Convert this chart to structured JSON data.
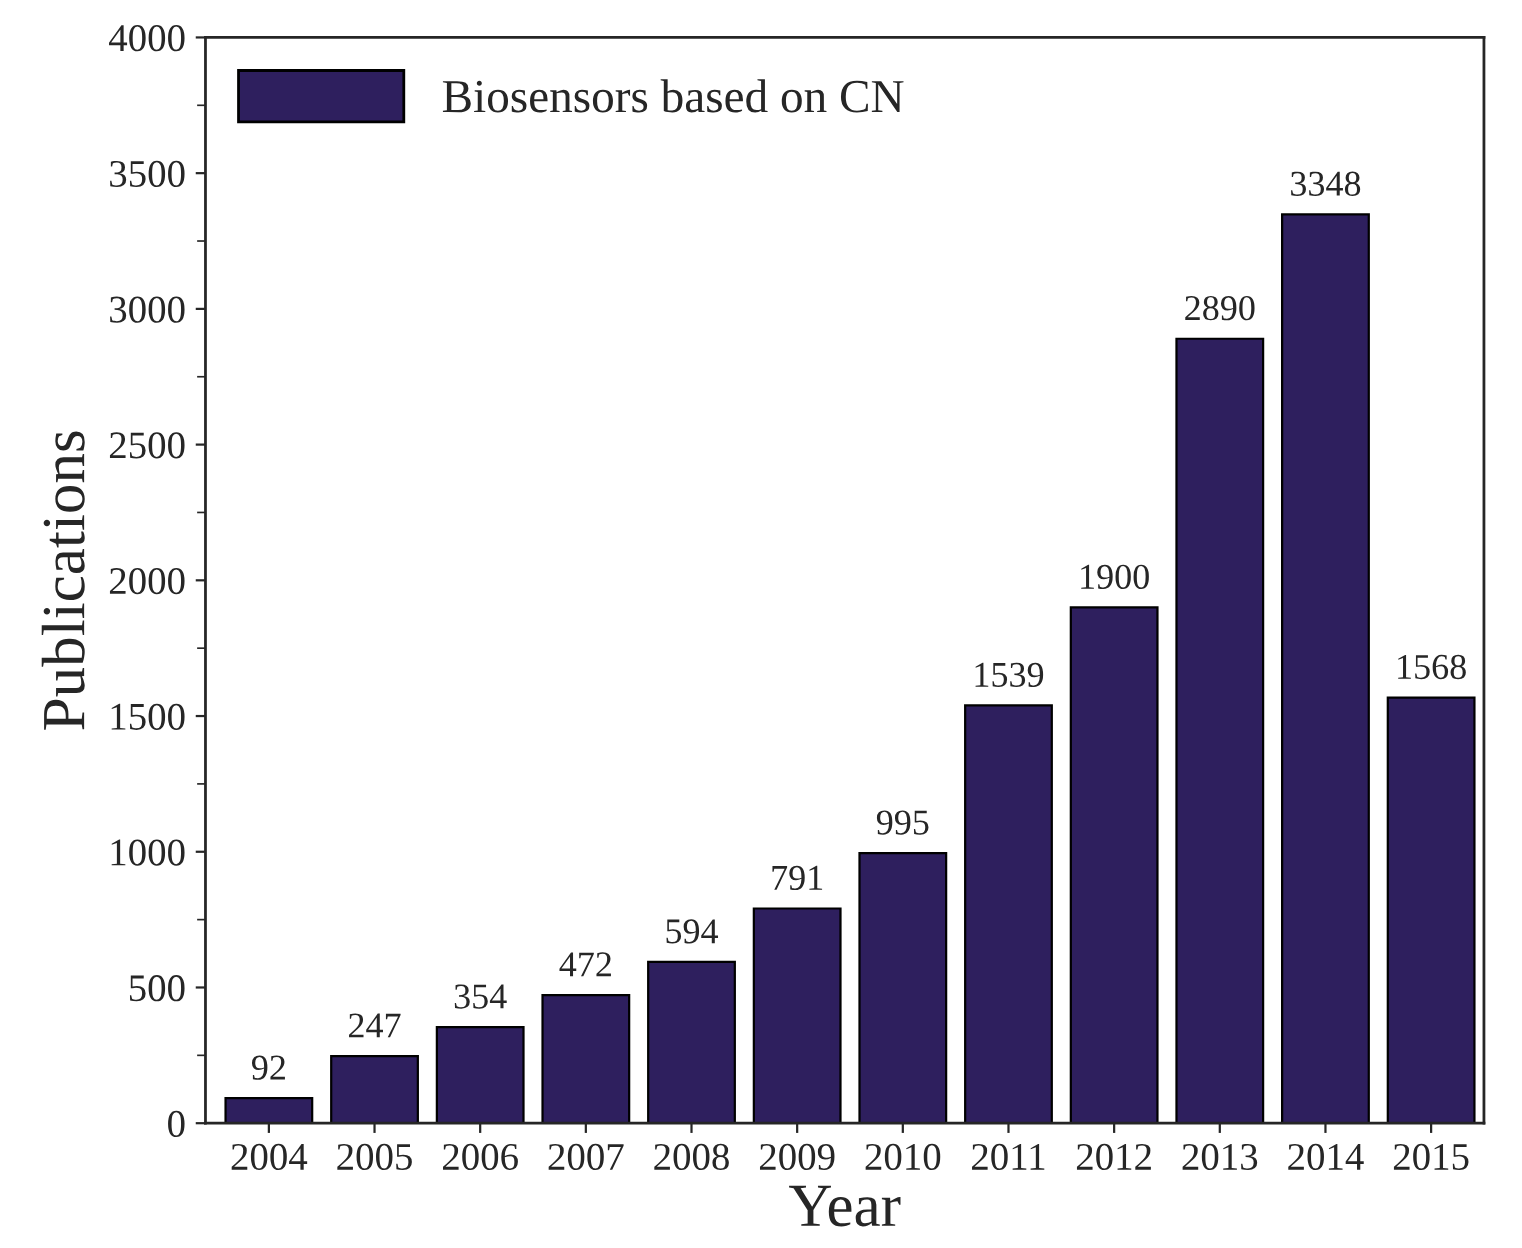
{
  "chart_data": {
    "type": "bar",
    "xlabel": "Year",
    "ylabel": "Publications",
    "categories": [
      "2004",
      "2005",
      "2006",
      "2007",
      "2008",
      "2009",
      "2010",
      "2011",
      "2012",
      "2013",
      "2014",
      "2015"
    ],
    "series": [
      {
        "name": "Biosensors based on CN",
        "color": "#2e1f5e",
        "values": [
          92,
          247,
          354,
          472,
          594,
          791,
          995,
          1539,
          1900,
          2890,
          3348,
          1568
        ]
      }
    ],
    "ylim": [
      0,
      4000
    ],
    "yticks": [
      0,
      500,
      1000,
      1500,
      2000,
      2500,
      3000,
      3500,
      4000
    ],
    "data_labels": true,
    "legend": "top left",
    "grid": false
  }
}
